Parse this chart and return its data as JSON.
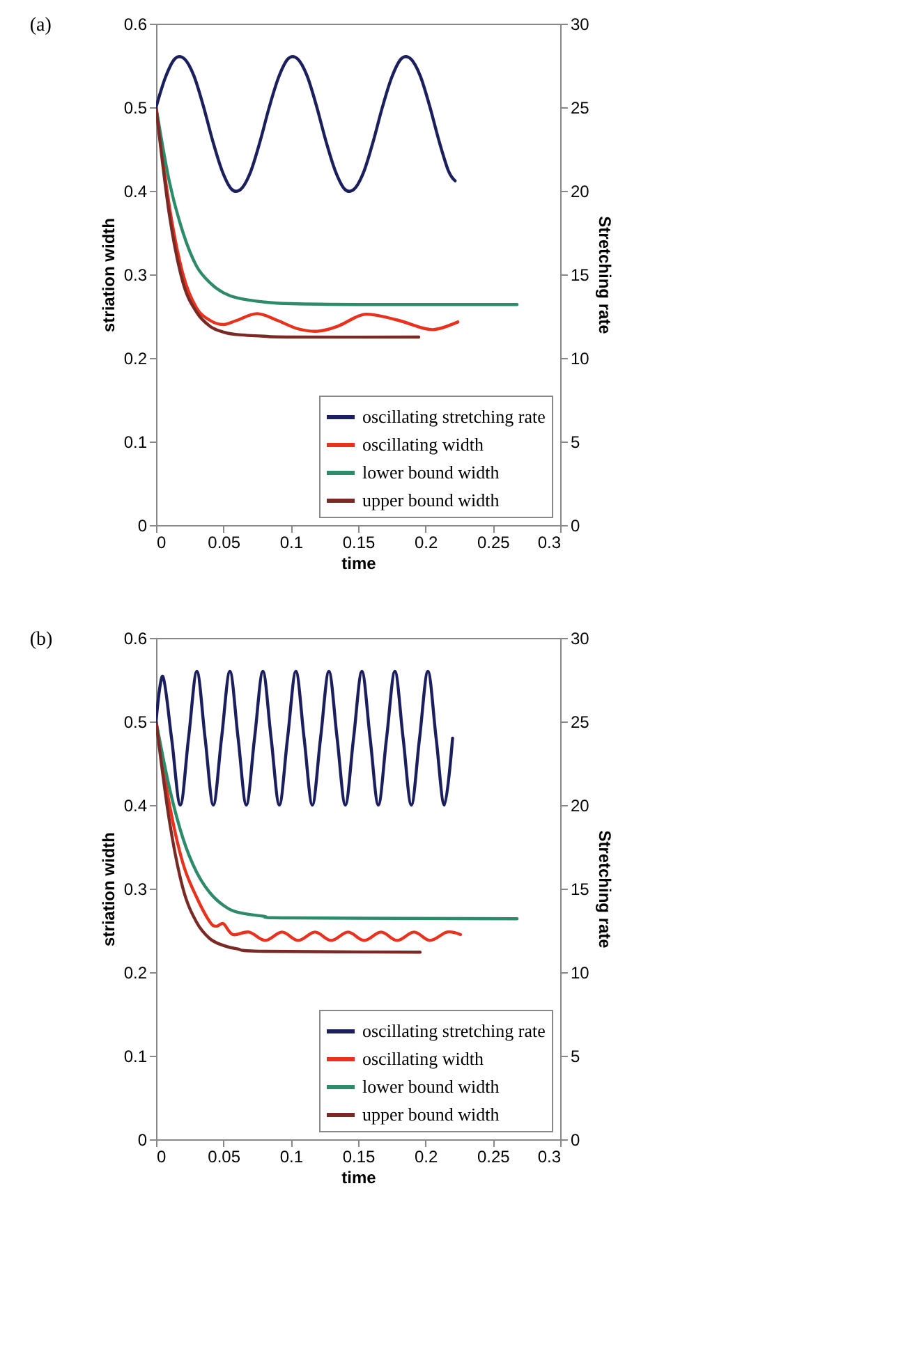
{
  "chart_data": [
    {
      "type": "line",
      "title": "(a)",
      "xlabel": "time",
      "ylabel": "striation width",
      "y2label": "Stretching rate",
      "xlim": [
        0,
        0.3
      ],
      "xticks": [
        0,
        0.05,
        0.1,
        0.15,
        0.2,
        0.25,
        0.3
      ],
      "ylim": [
        0,
        0.6
      ],
      "yticks": [
        0,
        0.1,
        0.2,
        0.3,
        0.4,
        0.5,
        0.6
      ],
      "y2lim": [
        0,
        30
      ],
      "y2ticks": [
        0,
        5,
        10,
        15,
        20,
        25,
        30
      ],
      "grid": false,
      "legend": "bottom right",
      "series": [
        {
          "name": "oscillating stretching rate",
          "color": "#1c1f5e",
          "axis": "y2",
          "x": [
            0,
            0.007,
            0.014,
            0.021,
            0.028,
            0.035,
            0.042,
            0.049,
            0.056,
            0.063,
            0.07,
            0.077,
            0.084,
            0.091,
            0.098,
            0.105,
            0.112,
            0.119,
            0.126,
            0.133,
            0.14,
            0.147,
            0.154,
            0.161,
            0.168,
            0.175,
            0.182,
            0.189,
            0.196,
            0.203,
            0.21,
            0.217,
            0.222
          ],
          "values": [
            25,
            26.8,
            27.9,
            27.9,
            26.9,
            25.1,
            23,
            21.2,
            20.1,
            20.1,
            21.1,
            22.9,
            25,
            26.8,
            27.9,
            27.9,
            26.9,
            25.1,
            23,
            21.2,
            20.1,
            20.1,
            21.1,
            22.9,
            25,
            26.8,
            27.9,
            27.9,
            26.9,
            25.1,
            23,
            21.2,
            20.6
          ]
        },
        {
          "name": "oscillating width",
          "color": "#e8321e",
          "x": [
            0,
            0.01,
            0.02,
            0.03,
            0.04,
            0.05,
            0.06,
            0.075,
            0.09,
            0.105,
            0.12,
            0.135,
            0.15,
            0.16,
            0.18,
            0.2,
            0.21,
            0.224
          ],
          "values": [
            0.5,
            0.38,
            0.3,
            0.26,
            0.245,
            0.24,
            0.245,
            0.253,
            0.245,
            0.235,
            0.232,
            0.238,
            0.25,
            0.252,
            0.245,
            0.235,
            0.235,
            0.243
          ]
        },
        {
          "name": "lower bound width",
          "color": "#2e8b6a",
          "x": [
            0,
            0.01,
            0.02,
            0.03,
            0.04,
            0.05,
            0.06,
            0.08,
            0.1,
            0.15,
            0.268
          ],
          "values": [
            0.5,
            0.41,
            0.35,
            0.31,
            0.29,
            0.278,
            0.272,
            0.267,
            0.265,
            0.264,
            0.264
          ]
        },
        {
          "name": "upper bound width",
          "color": "#7a2a25",
          "x": [
            0,
            0.01,
            0.02,
            0.03,
            0.04,
            0.05,
            0.06,
            0.08,
            0.1,
            0.195
          ],
          "values": [
            0.5,
            0.37,
            0.29,
            0.255,
            0.238,
            0.231,
            0.228,
            0.226,
            0.225,
            0.225
          ]
        }
      ]
    },
    {
      "type": "line",
      "title": "(b)",
      "xlabel": "time",
      "ylabel": "striation width",
      "y2label": "Stretching rate",
      "xlim": [
        0,
        0.3
      ],
      "xticks": [
        0,
        0.05,
        0.1,
        0.15,
        0.2,
        0.25,
        0.3
      ],
      "ylim": [
        0,
        0.6
      ],
      "yticks": [
        0,
        0.1,
        0.2,
        0.3,
        0.4,
        0.5,
        0.6
      ],
      "y2lim": [
        0,
        30
      ],
      "y2ticks": [
        0,
        5,
        10,
        15,
        20,
        25,
        30
      ],
      "grid": false,
      "legend": "bottom right",
      "series": [
        {
          "name": "oscillating stretching rate",
          "color": "#1c1f5e",
          "axis": "y2",
          "x": [
            0,
            0.005,
            0.0115,
            0.018,
            0.0241,
            0.0303,
            0.0364,
            0.0425,
            0.0486,
            0.0548,
            0.0609,
            0.067,
            0.0731,
            0.0793,
            0.0854,
            0.0915,
            0.0976,
            0.1038,
            0.1099,
            0.116,
            0.1221,
            0.1283,
            0.1344,
            0.1405,
            0.1466,
            0.1528,
            0.1589,
            0.165,
            0.1711,
            0.1773,
            0.1834,
            0.1895,
            0.1956,
            0.2018,
            0.2079,
            0.214,
            0.2201
          ],
          "values": [
            25,
            27.7,
            24,
            20,
            24,
            28,
            24,
            20,
            24,
            28,
            24,
            20,
            24,
            28,
            24,
            20,
            24,
            28,
            24,
            20,
            24,
            28,
            24,
            20,
            24,
            28,
            24,
            20,
            24,
            28,
            24,
            20,
            24,
            28,
            24,
            20,
            24
          ]
        },
        {
          "name": "oscillating width",
          "color": "#e8321e",
          "x": [
            0,
            0.01,
            0.02,
            0.03,
            0.04,
            0.045,
            0.05,
            0.057,
            0.069,
            0.081,
            0.0935,
            0.1055,
            0.118,
            0.13,
            0.1425,
            0.1545,
            0.167,
            0.179,
            0.1915,
            0.2035,
            0.216,
            0.226
          ],
          "values": [
            0.5,
            0.4,
            0.33,
            0.29,
            0.26,
            0.255,
            0.258,
            0.245,
            0.248,
            0.238,
            0.248,
            0.238,
            0.248,
            0.238,
            0.248,
            0.238,
            0.248,
            0.238,
            0.248,
            0.238,
            0.248,
            0.245
          ]
        },
        {
          "name": "lower bound width",
          "color": "#2e8b6a",
          "x": [
            0,
            0.01,
            0.02,
            0.03,
            0.04,
            0.05,
            0.06,
            0.08,
            0.1,
            0.268
          ],
          "values": [
            0.5,
            0.42,
            0.36,
            0.32,
            0.295,
            0.28,
            0.272,
            0.267,
            0.265,
            0.264
          ]
        },
        {
          "name": "upper bound width",
          "color": "#7a2a25",
          "x": [
            0,
            0.01,
            0.02,
            0.03,
            0.04,
            0.05,
            0.06,
            0.08,
            0.196
          ],
          "values": [
            0.5,
            0.38,
            0.3,
            0.26,
            0.24,
            0.232,
            0.228,
            0.225,
            0.224
          ]
        }
      ]
    }
  ]
}
